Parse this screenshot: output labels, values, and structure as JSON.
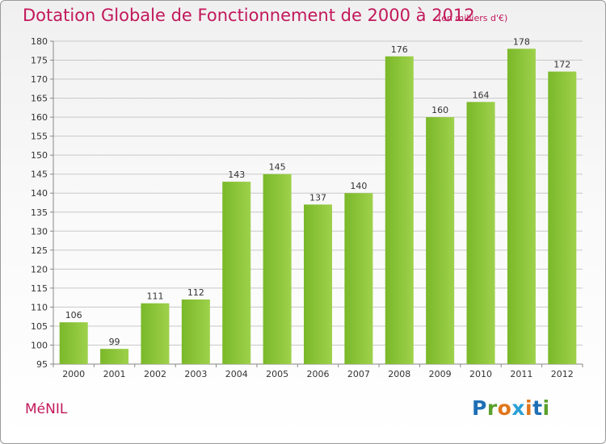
{
  "title": "Dotation Globale de Fonctionnement de 2000 à 2012",
  "subtitle": "(en milliers d'€)",
  "commune": "MéNIL",
  "logo": {
    "text": "Proxiti",
    "letter_colors": [
      "#1e6fb5",
      "#5aa02c",
      "#e0761b",
      "#2a9fd6",
      "#e0761b",
      "#1e6fb5",
      "#5aa02c"
    ]
  },
  "colors": {
    "bar": "#7ab829",
    "bar_light": "#9ed14b",
    "text_accent": "#c2185b",
    "grid": "#c8c8c8"
  },
  "chart_data": {
    "type": "bar",
    "categories": [
      "2000",
      "2001",
      "2002",
      "2003",
      "2004",
      "2005",
      "2006",
      "2007",
      "2008",
      "2009",
      "2010",
      "2011",
      "2012"
    ],
    "values": [
      106,
      99,
      111,
      112,
      143,
      145,
      137,
      140,
      176,
      160,
      164,
      178,
      172
    ],
    "ylim": [
      95,
      180
    ],
    "yticks": [
      95,
      100,
      105,
      110,
      115,
      120,
      125,
      130,
      135,
      140,
      145,
      150,
      155,
      160,
      165,
      170,
      175,
      180
    ],
    "grid": true,
    "xlabel": "",
    "ylabel": ""
  }
}
